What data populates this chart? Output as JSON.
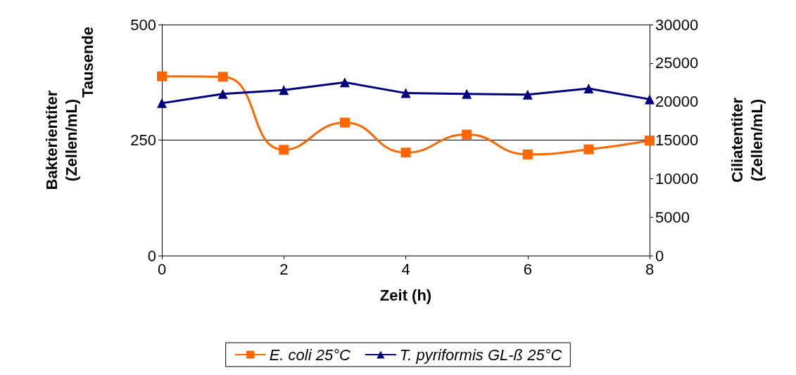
{
  "chart_data": {
    "type": "line",
    "xlabel": "Zeit (h)",
    "ylabel": "Bakterientiter\n(Zellen/mL)",
    "y2label": "Ciliatentiter\n(Zellen/mL)",
    "annotations": [
      "Tausende"
    ],
    "x": [
      0,
      1,
      2,
      3,
      4,
      5,
      6,
      7,
      8
    ],
    "series": [
      {
        "name": "E. coli 25°C",
        "color": "#ff6600",
        "marker": "square",
        "values": [
          388,
          387,
          229,
          288,
          223,
          262,
          219,
          230,
          249
        ]
      },
      {
        "name": "T. pyriformis GL-ß 25°C",
        "color": "#000080",
        "marker": "triangle",
        "axis": "y2",
        "values": [
          19800,
          21000,
          21500,
          22500,
          21100,
          21000,
          20900,
          21700,
          20300
        ]
      }
    ],
    "xlim": [
      0,
      8
    ],
    "xticks": [
      0,
      2,
      4,
      6,
      8
    ],
    "ylim": [
      0,
      500
    ],
    "yticks": [
      0,
      250,
      500
    ],
    "y2lim": [
      0,
      30000
    ],
    "y2ticks": [
      0,
      5000,
      10000,
      15000,
      20000,
      25000,
      30000
    ],
    "grid": "y",
    "legend": "bottom"
  }
}
